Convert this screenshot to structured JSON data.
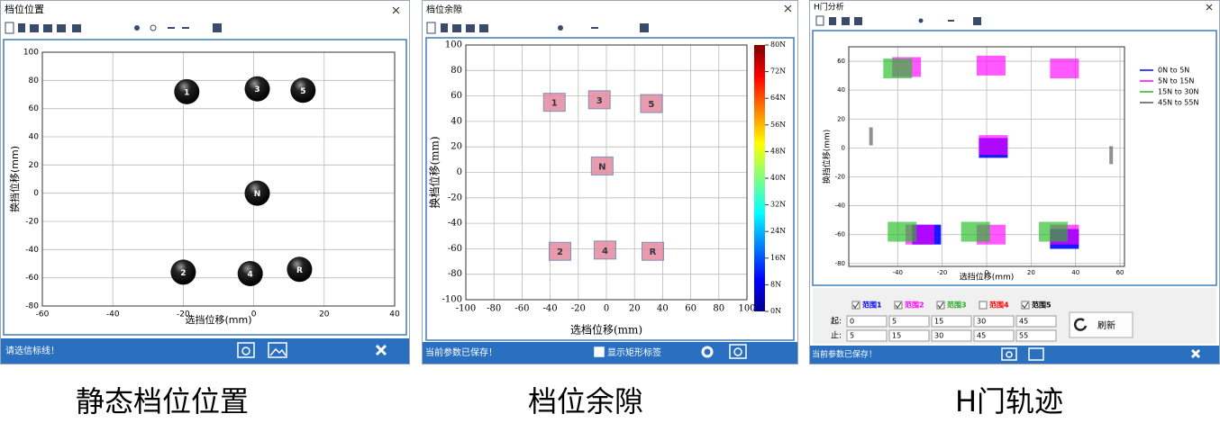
{
  "windows": [
    {
      "title": "档位位置",
      "status": "请选信标线！",
      "caption": "静态档位位置"
    },
    {
      "title": "档位余隙",
      "status": "当前参数已保存！",
      "checkbox": "显示矩形标签",
      "caption": "档位余隙"
    },
    {
      "title": "H门分析",
      "status": "当前参数已保存！",
      "caption": "H门轨迹",
      "from_label": "起:",
      "to_label": "止:",
      "refresh": "刷新",
      "ranges": [
        {
          "name": "范围1",
          "checked": true,
          "color": "#0000ff",
          "from": 0,
          "to": 5
        },
        {
          "name": "范围2",
          "checked": true,
          "color": "#ff00ff",
          "from": 5,
          "to": 15
        },
        {
          "name": "范围3",
          "checked": true,
          "color": "#22aa22",
          "from": 15,
          "to": 30
        },
        {
          "name": "范围4",
          "checked": false,
          "color": "#ff0000",
          "from": 30,
          "to": 45
        },
        {
          "name": "范围5",
          "checked": true,
          "color": "#000000",
          "from": 45,
          "to": 55
        }
      ]
    }
  ],
  "chart_data": [
    {
      "type": "scatter",
      "marker": "ball",
      "xlabel": "选挡位移(mm)",
      "ylabel": "换挡位移(mm)",
      "x": [
        -19,
        1,
        14,
        1,
        -20,
        -1,
        13
      ],
      "y": [
        72,
        74,
        73,
        0,
        -56,
        -57,
        -54
      ],
      "labels": [
        "1",
        "3",
        "5",
        "N",
        "2",
        "4",
        "R"
      ],
      "xlim": [
        -60,
        40
      ],
      "xticks": [
        -60,
        -40,
        -20,
        0,
        20,
        40
      ],
      "ylim": [
        -80,
        100
      ],
      "yticks": [
        -80,
        -60,
        -40,
        -20,
        0,
        20,
        40,
        60,
        80,
        100
      ],
      "grid": true,
      "color": "#111111"
    },
    {
      "type": "scatter",
      "marker": "square",
      "xlabel": "选档位移(mm)",
      "ylabel": "换档位移(mm)",
      "x": [
        -37,
        -5,
        32,
        -3,
        -33,
        -1,
        33
      ],
      "y": [
        55,
        57,
        54,
        5,
        -62,
        -61,
        -62
      ],
      "labels": [
        "1",
        "3",
        "5",
        "N",
        "2",
        "4",
        "R"
      ],
      "xlim": [
        -100,
        100
      ],
      "xticks": [
        -100,
        -80,
        -60,
        -40,
        -20,
        0,
        20,
        40,
        60,
        80,
        100
      ],
      "ylim": [
        -100,
        100
      ],
      "yticks": [
        -100,
        -80,
        -60,
        -40,
        -20,
        0,
        20,
        40,
        60,
        80,
        100
      ],
      "grid": true,
      "color": "#e58a9e",
      "colorbar": {
        "lim": [
          0,
          80
        ],
        "ticks": [
          {
            "value": 0,
            "label": "0N"
          },
          {
            "value": 8,
            "label": "8N"
          },
          {
            "value": 16,
            "label": "16N"
          },
          {
            "value": 24,
            "label": "24N"
          },
          {
            "value": 32,
            "label": "32N"
          },
          {
            "value": 40,
            "label": "40N"
          },
          {
            "value": 48,
            "label": "48N"
          },
          {
            "value": 56,
            "label": "56N"
          },
          {
            "value": 64,
            "label": "64N"
          },
          {
            "value": 72,
            "label": "72N"
          },
          {
            "value": 80,
            "label": "80N"
          }
        ]
      }
    },
    {
      "type": "scatter",
      "marker": "cluster",
      "xlabel": "选挡位移(mm)",
      "ylabel": "换挡位移(mm)",
      "xlim": [
        -62,
        62
      ],
      "xticks": [
        -40,
        -20,
        0,
        20,
        40,
        60
      ],
      "ylim": [
        -82,
        70
      ],
      "yticks": [
        -80,
        -60,
        -40,
        -20,
        0,
        20,
        40,
        60
      ],
      "grid": true,
      "legend": "right",
      "series": [
        {
          "name": "0N to 5N",
          "color": "#0000ff",
          "x": [
            3,
            -27,
            35
          ],
          "y": [
            0,
            -60,
            -63
          ]
        },
        {
          "name": "5N to 15N",
          "color": "#ff00ff",
          "x": [
            -36,
            2,
            35,
            3,
            -30,
            2,
            35
          ],
          "y": [
            56,
            57,
            55,
            2,
            -60,
            -60,
            -60
          ]
        },
        {
          "name": "15N to 30N",
          "color": "#22bb22",
          "x": [
            -40,
            -38,
            -5,
            30
          ],
          "y": [
            55,
            -58,
            -58,
            -58
          ]
        },
        {
          "name": "45N to 55N",
          "color": "#555555",
          "x": [
            -52,
            56
          ],
          "y": [
            8,
            -5
          ]
        }
      ]
    }
  ]
}
